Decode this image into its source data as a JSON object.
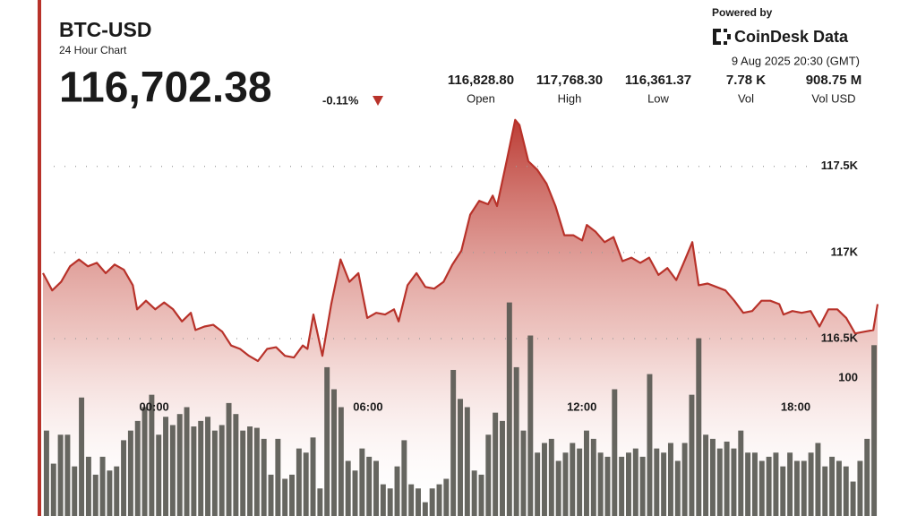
{
  "header": {
    "title": "BTC-USD",
    "subtitle": "24 Hour Chart",
    "price": "116,702.38",
    "change": "-0.11%",
    "powered_by": "Powered by",
    "brand": "CoinDesk Data",
    "timestamp": "9 Aug 2025 20:30 (GMT)"
  },
  "stats": [
    {
      "value": "116,828.80",
      "label": "Open"
    },
    {
      "value": "117,768.30",
      "label": "High"
    },
    {
      "value": "116,361.37",
      "label": "Low"
    },
    {
      "value": "7.78 K",
      "label": "Vol"
    },
    {
      "value": "908.75 M",
      "label": "Vol USD"
    }
  ],
  "chart_data": [
    {
      "type": "area",
      "color": "#b8322a",
      "x": [
        -3.12,
        -2.86,
        -2.61,
        -2.36,
        -2.11,
        -1.86,
        -1.61,
        -1.36,
        -1.11,
        -0.85,
        -0.6,
        -0.48,
        -0.23,
        0.03,
        0.28,
        0.53,
        0.78,
        1.03,
        1.16,
        1.41,
        1.66,
        1.91,
        2.16,
        2.41,
        2.66,
        2.91,
        3.17,
        3.42,
        3.67,
        3.92,
        4.17,
        4.3,
        4.47,
        4.72,
        4.97,
        5.23,
        5.48,
        5.73,
        5.98,
        6.23,
        6.48,
        6.73,
        6.86,
        7.11,
        7.36,
        7.61,
        7.86,
        8.12,
        8.37,
        8.62,
        8.87,
        9.12,
        9.37,
        9.5,
        9.62,
        9.87,
        10.13,
        10.25,
        10.5,
        10.75,
        11.01,
        11.26,
        11.51,
        11.76,
        12.01,
        12.14,
        12.39,
        12.64,
        12.89,
        13.14,
        13.39,
        13.64,
        13.89,
        14.15,
        14.4,
        14.65,
        14.9,
        15.1,
        15.28,
        15.53,
        15.78,
        16.03,
        16.28,
        16.53,
        16.78,
        17.04,
        17.29,
        17.54,
        17.66,
        17.91,
        18.17,
        18.42,
        18.67,
        18.92,
        19.17,
        19.42,
        19.67,
        19.92,
        20.18,
        20.3
      ],
      "values": [
        116880,
        116780,
        116830,
        116920,
        116960,
        116920,
        116940,
        116880,
        116930,
        116900,
        116810,
        116670,
        116720,
        116670,
        116710,
        116670,
        116600,
        116650,
        116550,
        116570,
        116580,
        116540,
        116460,
        116440,
        116400,
        116370,
        116440,
        116450,
        116400,
        116390,
        116460,
        116440,
        116640,
        116400,
        116700,
        116960,
        116830,
        116880,
        116620,
        116650,
        116640,
        116670,
        116600,
        116810,
        116880,
        116800,
        116790,
        116830,
        116930,
        117010,
        117220,
        117300,
        117280,
        117330,
        117270,
        117510,
        117770,
        117740,
        117530,
        117480,
        117400,
        117270,
        117100,
        117100,
        117070,
        117160,
        117120,
        117060,
        117090,
        116950,
        116970,
        116940,
        116970,
        116870,
        116910,
        116840,
        116960,
        117060,
        116810,
        116820,
        116800,
        116780,
        116720,
        116650,
        116660,
        116720,
        116720,
        116700,
        116640,
        116660,
        116650,
        116660,
        116570,
        116670,
        116670,
        116620,
        116530,
        116540,
        116550,
        116700
      ],
      "xlim": [
        -3.12,
        20.3
      ],
      "xticks": [
        {
          "value": 0,
          "label": "00:00"
        },
        {
          "value": 6,
          "label": "06:00"
        },
        {
          "value": 12,
          "label": "12:00"
        },
        {
          "value": 18,
          "label": "18:00"
        }
      ],
      "ylim": [
        115470,
        117790
      ],
      "yticks": [
        {
          "value": 116500,
          "label": "116.5K"
        },
        {
          "value": 117000,
          "label": "117K"
        },
        {
          "value": 117500,
          "label": "117.5K"
        }
      ],
      "grid": true
    },
    {
      "type": "bar",
      "color": "#55554f",
      "values": [
        62,
        38,
        59,
        59,
        36,
        86,
        43,
        30,
        43,
        33,
        36,
        55,
        62,
        69,
        79,
        88,
        59,
        72,
        66,
        74,
        79,
        65,
        69,
        72,
        62,
        66,
        82,
        74,
        62,
        65,
        64,
        56,
        30,
        56,
        27,
        30,
        49,
        46,
        57,
        20,
        108,
        92,
        79,
        40,
        33,
        49,
        43,
        40,
        23,
        20,
        36,
        55,
        23,
        20,
        10,
        20,
        23,
        27,
        106,
        85,
        79,
        33,
        30,
        59,
        75,
        69,
        155,
        108,
        62,
        131,
        46,
        53,
        56,
        40,
        46,
        53,
        49,
        62,
        56,
        46,
        43,
        92,
        43,
        46,
        49,
        43,
        103,
        49,
        46,
        53,
        40,
        53,
        88,
        129,
        59,
        56,
        49,
        54,
        49,
        62,
        46,
        46,
        40,
        43,
        46,
        36,
        46,
        40,
        40,
        46,
        53,
        36,
        43,
        40,
        36,
        25,
        40,
        56,
        124
      ],
      "ylim": [
        0,
        290
      ],
      "yticks": [
        100
      ],
      "grid": false
    }
  ]
}
